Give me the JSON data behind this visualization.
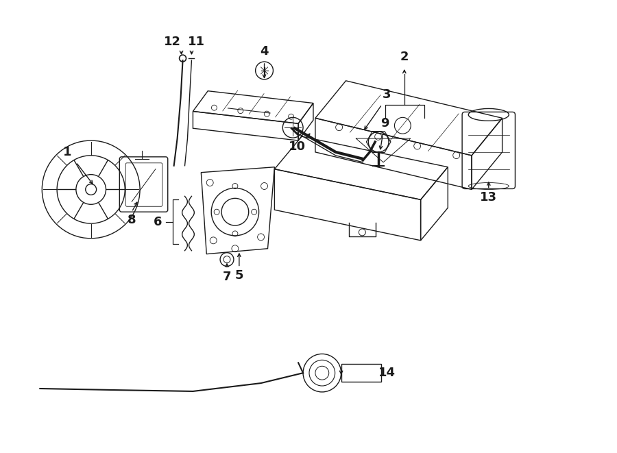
{
  "bg_color": "#ffffff",
  "line_color": "#1a1a1a",
  "lw": 1.0,
  "figsize": [
    9.0,
    6.61
  ],
  "dpi": 100
}
